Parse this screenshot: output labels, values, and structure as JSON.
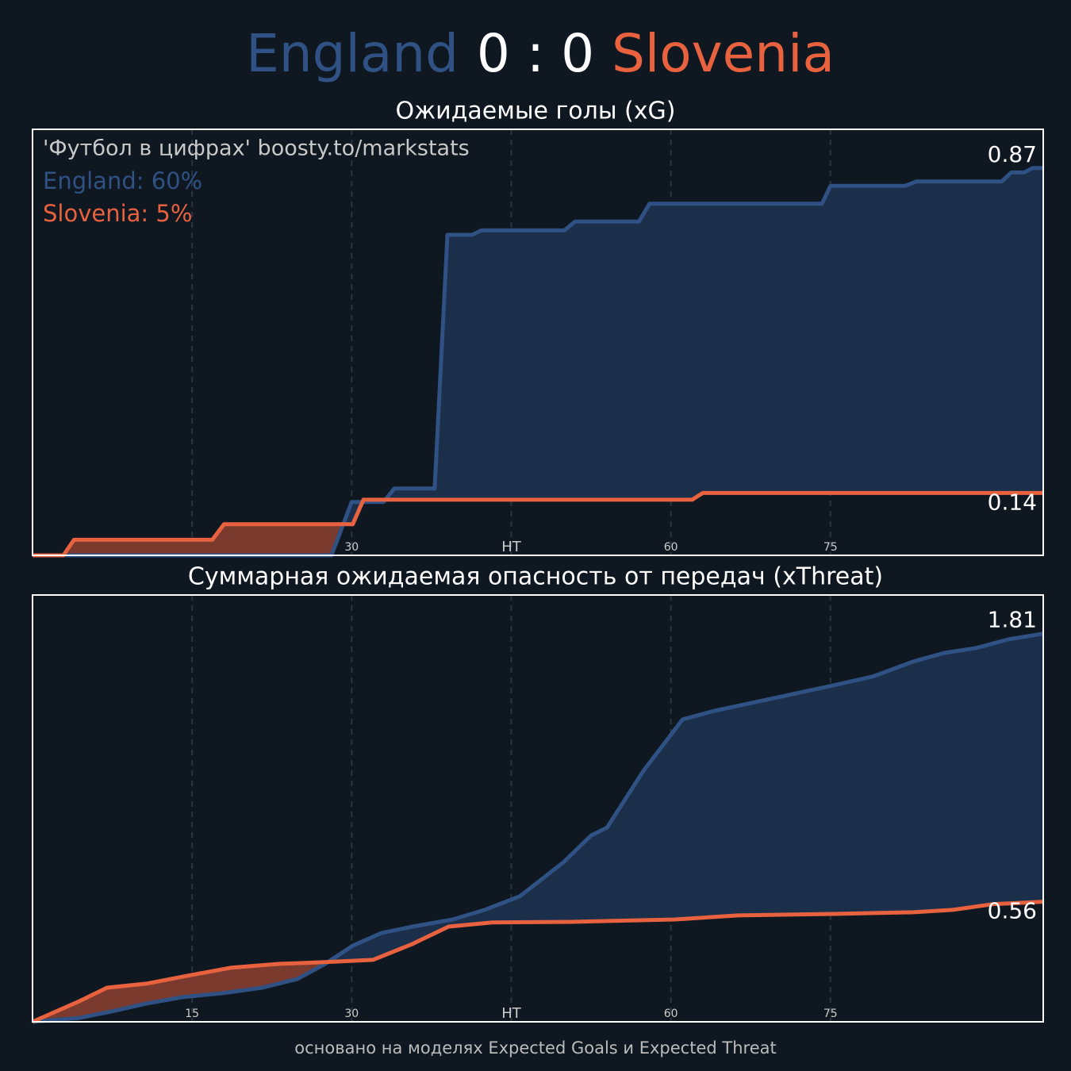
{
  "header": {
    "home": "England",
    "score": "0 : 0",
    "away": "Slovenia"
  },
  "chart_data": [
    {
      "type": "line",
      "title": "Ожидаемые голы (xG)",
      "watermark": "'Футбол в цифрах' boosty.to/markstats",
      "legend": [
        "England: 60%",
        "Slovenia: 5%"
      ],
      "xlim": [
        0,
        95
      ],
      "ylim": [
        0,
        0.957
      ],
      "xticks": [
        15,
        30,
        {
          "value": 45,
          "label": "HT"
        },
        60,
        75
      ],
      "grid": true,
      "step_fill": true,
      "series": [
        {
          "name": "England",
          "color": "#2f5183",
          "fill": "#1c2f4a",
          "x": [
            0,
            28.1,
            30,
            33,
            34,
            37.8,
            39,
            41.3,
            42.2,
            50,
            51,
            57,
            58,
            74.2,
            75,
            82,
            83.1,
            91.1,
            92,
            93.2,
            94,
            95
          ],
          "values": [
            0,
            0,
            0.12,
            0.12,
            0.15,
            0.15,
            0.72,
            0.72,
            0.73,
            0.73,
            0.75,
            0.75,
            0.79,
            0.79,
            0.83,
            0.83,
            0.84,
            0.84,
            0.86,
            0.86,
            0.87,
            0.87
          ]
        },
        {
          "name": "Slovenia",
          "color": "#e8623f",
          "fill": "#7a3a2e",
          "x": [
            0,
            2.9,
            3.9,
            16.9,
            18,
            30.1,
            31.1,
            62,
            63,
            95
          ],
          "values": [
            0,
            0,
            0.035,
            0.035,
            0.07,
            0.07,
            0.125,
            0.125,
            0.14,
            0.14
          ]
        }
      ]
    },
    {
      "type": "line",
      "title": "Суммарная ожидаемая опасность от передач (xThreat)",
      "xlim": [
        0,
        95
      ],
      "ylim": [
        0,
        1.99
      ],
      "xticks": [
        15,
        30,
        {
          "value": 45,
          "label": "HT"
        },
        60,
        75
      ],
      "grid": true,
      "series": [
        {
          "name": "England",
          "color": "#2f5183",
          "fill": "#1c2f4a",
          "x": [
            0,
            4.4,
            7.4,
            10.7,
            14.1,
            17.8,
            21.6,
            24.9,
            27.5,
            30.1,
            32.8,
            35.7,
            39.5,
            42.5,
            45.8,
            49.9,
            52.5,
            54,
            57.4,
            61.1,
            64.1,
            70.8,
            75.3,
            79,
            82.8,
            85.7,
            88.7,
            91.7,
            95
          ],
          "values": [
            0,
            0.018,
            0.048,
            0.085,
            0.115,
            0.133,
            0.159,
            0.2,
            0.27,
            0.355,
            0.414,
            0.444,
            0.477,
            0.522,
            0.585,
            0.744,
            0.869,
            0.906,
            1.169,
            1.41,
            1.45,
            1.521,
            1.569,
            1.61,
            1.68,
            1.72,
            1.743,
            1.783,
            1.81
          ]
        },
        {
          "name": "Slovenia",
          "color": "#e8623f",
          "fill": "#7a3a2e",
          "x": [
            0,
            4.4,
            7,
            10.7,
            14.9,
            18.6,
            23.1,
            27.5,
            32,
            35.7,
            39.1,
            43.2,
            50.7,
            60.4,
            66.3,
            75.3,
            82.8,
            86.5,
            90.2,
            95
          ],
          "values": [
            0,
            0.096,
            0.159,
            0.178,
            0.218,
            0.252,
            0.27,
            0.278,
            0.289,
            0.363,
            0.444,
            0.463,
            0.466,
            0.477,
            0.496,
            0.503,
            0.511,
            0.522,
            0.548,
            0.56
          ]
        }
      ]
    }
  ],
  "footer": "основано на моделях Expected Goals и Expected Threat"
}
